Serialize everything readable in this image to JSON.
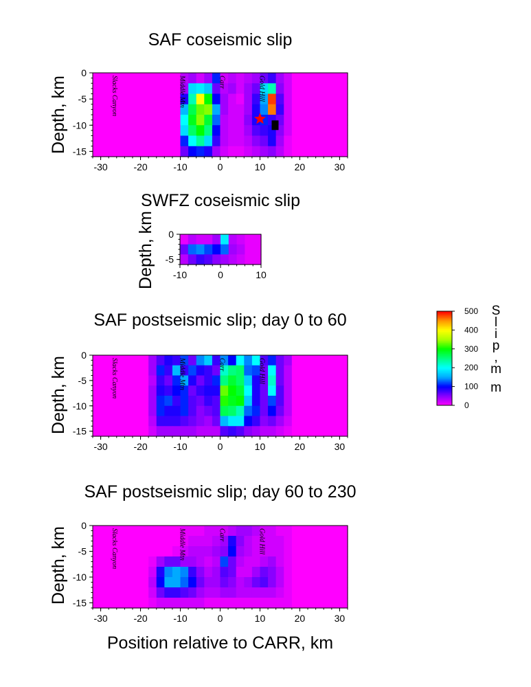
{
  "chart_data": [
    {
      "id": "saf_coseismic",
      "type": "heatmap",
      "title": "SAF coseismic slip",
      "ylabel": "Depth, km",
      "xlabel": "",
      "xlim": [
        -32,
        32
      ],
      "ylim": [
        -16,
        0
      ],
      "xticks": [
        -30,
        -20,
        -10,
        0,
        10,
        20,
        30
      ],
      "yticks": [
        0,
        -5,
        -10,
        -15
      ],
      "cell_km": 2,
      "rows": [
        [
          0,
          0,
          0,
          0,
          0,
          0,
          0,
          0,
          0,
          0,
          0,
          30,
          40,
          20,
          40,
          110,
          20,
          30,
          20,
          30,
          40,
          60,
          80,
          40,
          20,
          0,
          0,
          0,
          0,
          0,
          0,
          0
        ],
        [
          0,
          0,
          0,
          0,
          0,
          0,
          0,
          0,
          0,
          0,
          0,
          40,
          180,
          190,
          170,
          60,
          30,
          40,
          20,
          40,
          60,
          180,
          230,
          50,
          20,
          0,
          0,
          0,
          0,
          0,
          0,
          0
        ],
        [
          0,
          0,
          0,
          0,
          0,
          0,
          0,
          0,
          0,
          0,
          0,
          90,
          230,
          400,
          300,
          100,
          40,
          20,
          10,
          40,
          80,
          150,
          480,
          70,
          20,
          0,
          0,
          0,
          0,
          0,
          0,
          0
        ],
        [
          0,
          0,
          0,
          0,
          0,
          0,
          0,
          0,
          0,
          0,
          0,
          160,
          270,
          330,
          340,
          150,
          40,
          20,
          20,
          40,
          90,
          140,
          460,
          80,
          20,
          0,
          0,
          0,
          0,
          0,
          0,
          0
        ],
        [
          0,
          0,
          0,
          0,
          0,
          0,
          0,
          0,
          0,
          0,
          0,
          200,
          290,
          340,
          280,
          130,
          30,
          20,
          20,
          50,
          90,
          110,
          80,
          60,
          20,
          0,
          0,
          0,
          0,
          0,
          0,
          0
        ],
        [
          0,
          0,
          0,
          0,
          0,
          0,
          0,
          0,
          0,
          0,
          0,
          180,
          260,
          300,
          250,
          100,
          30,
          20,
          20,
          40,
          70,
          80,
          90,
          50,
          20,
          0,
          0,
          0,
          0,
          0,
          0,
          0
        ],
        [
          0,
          0,
          0,
          0,
          0,
          0,
          0,
          0,
          0,
          0,
          0,
          110,
          200,
          240,
          180,
          80,
          30,
          20,
          20,
          30,
          50,
          60,
          90,
          40,
          10,
          0,
          0,
          0,
          0,
          0,
          0,
          0
        ],
        [
          0,
          0,
          0,
          0,
          0,
          0,
          0,
          0,
          0,
          0,
          0,
          60,
          100,
          110,
          90,
          40,
          20,
          10,
          10,
          20,
          30,
          40,
          50,
          30,
          10,
          0,
          0,
          0,
          0,
          0,
          0,
          0
        ]
      ],
      "place_labels": [
        {
          "text": "Slacks Canyon",
          "x": -27
        },
        {
          "text": "Middle Mtn",
          "x": -10
        },
        {
          "text": "Carr",
          "x": 0
        },
        {
          "text": "Gold Hill",
          "x": 10
        }
      ],
      "markers": [
        {
          "type": "star",
          "x": 10,
          "y": -8.8,
          "color": "#ff0000"
        },
        {
          "type": "square",
          "x": 13.8,
          "y": -10,
          "color": "#000000"
        }
      ]
    },
    {
      "id": "swfz_coseismic",
      "type": "heatmap",
      "title": "SWFZ coseismic slip",
      "ylabel": "Depth, km",
      "xlabel": "",
      "xlim": [
        -10,
        10
      ],
      "ylim": [
        -6,
        0
      ],
      "xticks": [
        -10,
        0,
        10
      ],
      "yticks": [
        0,
        -5
      ],
      "cell_km": 2,
      "rows": [
        [
          10,
          30,
          20,
          20,
          40,
          190,
          30,
          20,
          10,
          10
        ],
        [
          60,
          130,
          140,
          120,
          100,
          130,
          40,
          30,
          10,
          10
        ],
        [
          30,
          60,
          80,
          70,
          50,
          40,
          30,
          20,
          10,
          10
        ]
      ]
    },
    {
      "id": "saf_post_0_60",
      "type": "heatmap",
      "title": "SAF postseismic slip; day 0 to 60",
      "ylabel": "Depth, km",
      "xlabel": "",
      "xlim": [
        -32,
        32
      ],
      "ylim": [
        -16,
        0
      ],
      "xticks": [
        -30,
        -20,
        -10,
        0,
        10,
        20,
        30
      ],
      "yticks": [
        0,
        -5,
        -10,
        -15
      ],
      "cell_km": 2,
      "rows": [
        [
          0,
          0,
          0,
          0,
          0,
          0,
          0,
          40,
          70,
          90,
          80,
          120,
          60,
          140,
          170,
          80,
          140,
          100,
          200,
          140,
          200,
          70,
          110,
          60,
          40,
          0,
          0,
          0,
          0,
          0,
          0,
          0
        ],
        [
          0,
          0,
          0,
          0,
          0,
          0,
          0,
          40,
          110,
          80,
          160,
          80,
          120,
          90,
          80,
          60,
          220,
          250,
          260,
          130,
          120,
          60,
          200,
          60,
          30,
          0,
          0,
          0,
          0,
          0,
          0,
          0
        ],
        [
          0,
          0,
          0,
          0,
          0,
          0,
          0,
          30,
          80,
          60,
          110,
          150,
          90,
          60,
          80,
          110,
          250,
          280,
          260,
          170,
          90,
          60,
          220,
          60,
          30,
          0,
          0,
          0,
          0,
          0,
          0,
          0
        ],
        [
          0,
          0,
          0,
          0,
          0,
          0,
          0,
          40,
          90,
          80,
          100,
          110,
          60,
          80,
          90,
          90,
          330,
          300,
          280,
          200,
          90,
          60,
          200,
          70,
          30,
          0,
          0,
          0,
          0,
          0,
          0,
          0
        ],
        [
          0,
          0,
          0,
          0,
          0,
          0,
          0,
          40,
          110,
          120,
          80,
          110,
          70,
          60,
          80,
          70,
          310,
          290,
          300,
          170,
          90,
          60,
          120,
          70,
          30,
          0,
          0,
          0,
          0,
          0,
          0,
          0
        ],
        [
          0,
          0,
          0,
          0,
          0,
          0,
          0,
          40,
          110,
          90,
          90,
          110,
          70,
          50,
          60,
          70,
          270,
          260,
          230,
          130,
          110,
          60,
          100,
          60,
          30,
          0,
          0,
          0,
          0,
          0,
          0,
          0
        ],
        [
          0,
          0,
          0,
          0,
          0,
          0,
          0,
          30,
          80,
          80,
          80,
          70,
          60,
          50,
          40,
          60,
          160,
          190,
          190,
          100,
          80,
          50,
          60,
          40,
          20,
          0,
          0,
          0,
          0,
          0,
          0,
          0
        ],
        [
          0,
          0,
          0,
          0,
          0,
          0,
          0,
          20,
          40,
          40,
          40,
          40,
          40,
          30,
          30,
          30,
          70,
          80,
          70,
          50,
          40,
          30,
          30,
          20,
          10,
          0,
          0,
          0,
          0,
          0,
          0,
          0
        ]
      ],
      "place_labels": [
        {
          "text": "Slacks Canyon",
          "x": -27
        },
        {
          "text": "Middle Mtn",
          "x": -10
        },
        {
          "text": "Carr",
          "x": 0
        },
        {
          "text": "Gold Hill",
          "x": 10
        }
      ]
    },
    {
      "id": "saf_post_60_230",
      "type": "heatmap",
      "title": "SAF postseismic slip; day 60 to 230",
      "ylabel": "Depth, km",
      "xlabel": "Position relative to CARR, km",
      "xlim": [
        -32,
        32
      ],
      "ylim": [
        -16,
        0
      ],
      "xticks": [
        -30,
        -20,
        -10,
        0,
        10,
        20,
        30
      ],
      "yticks": [
        0,
        -5,
        -10,
        -15
      ],
      "cell_km": 2,
      "rows": [
        [
          0,
          0,
          0,
          0,
          0,
          0,
          0,
          0,
          0,
          0,
          0,
          10,
          10,
          10,
          20,
          20,
          20,
          30,
          40,
          40,
          30,
          20,
          20,
          10,
          10,
          0,
          0,
          0,
          0,
          0,
          0,
          0
        ],
        [
          0,
          0,
          0,
          0,
          0,
          0,
          0,
          0,
          0,
          0,
          0,
          10,
          20,
          20,
          20,
          30,
          40,
          90,
          50,
          30,
          20,
          20,
          20,
          20,
          10,
          0,
          0,
          0,
          0,
          0,
          0,
          0
        ],
        [
          0,
          0,
          0,
          0,
          0,
          0,
          0,
          0,
          0,
          0,
          10,
          20,
          30,
          30,
          30,
          40,
          50,
          100,
          40,
          30,
          20,
          20,
          20,
          20,
          10,
          0,
          0,
          0,
          0,
          0,
          0,
          0
        ],
        [
          0,
          0,
          0,
          0,
          0,
          0,
          0,
          10,
          40,
          60,
          60,
          40,
          40,
          30,
          20,
          30,
          120,
          60,
          30,
          20,
          20,
          30,
          40,
          20,
          10,
          0,
          0,
          0,
          0,
          0,
          0,
          0
        ],
        [
          0,
          0,
          0,
          0,
          0,
          0,
          0,
          20,
          90,
          140,
          150,
          140,
          80,
          50,
          30,
          40,
          70,
          60,
          20,
          20,
          40,
          60,
          50,
          30,
          10,
          0,
          0,
          0,
          0,
          0,
          0,
          0
        ],
        [
          0,
          0,
          0,
          0,
          0,
          0,
          0,
          30,
          100,
          150,
          150,
          130,
          100,
          60,
          40,
          40,
          60,
          50,
          30,
          40,
          60,
          70,
          50,
          30,
          10,
          0,
          0,
          0,
          0,
          0,
          0,
          0
        ],
        [
          0,
          0,
          0,
          0,
          0,
          0,
          0,
          20,
          60,
          80,
          80,
          70,
          60,
          40,
          30,
          30,
          40,
          40,
          30,
          30,
          30,
          30,
          30,
          20,
          10,
          0,
          0,
          0,
          0,
          0,
          0,
          0
        ],
        [
          0,
          0,
          0,
          0,
          0,
          0,
          0,
          10,
          20,
          20,
          20,
          20,
          20,
          20,
          10,
          10,
          10,
          10,
          10,
          10,
          10,
          10,
          10,
          10,
          10,
          0,
          0,
          0,
          0,
          0,
          0,
          0
        ]
      ],
      "place_labels": [
        {
          "text": "Slacks Canyon",
          "x": -27
        },
        {
          "text": "Middle Mtn",
          "x": -10
        },
        {
          "text": "Carr",
          "x": 0
        },
        {
          "text": "Gold Hill",
          "x": 10
        }
      ]
    }
  ],
  "colorbar": {
    "label": "Slip, mm",
    "min": 0,
    "max": 500,
    "ticks": [
      0,
      100,
      200,
      300,
      400,
      500
    ],
    "colors": [
      "#ff00ff",
      "#8a00ff",
      "#0000ff",
      "#00aaff",
      "#00ffff",
      "#00ff80",
      "#00ff00",
      "#aaff00",
      "#ffff00",
      "#ff9900",
      "#ff0000"
    ]
  }
}
